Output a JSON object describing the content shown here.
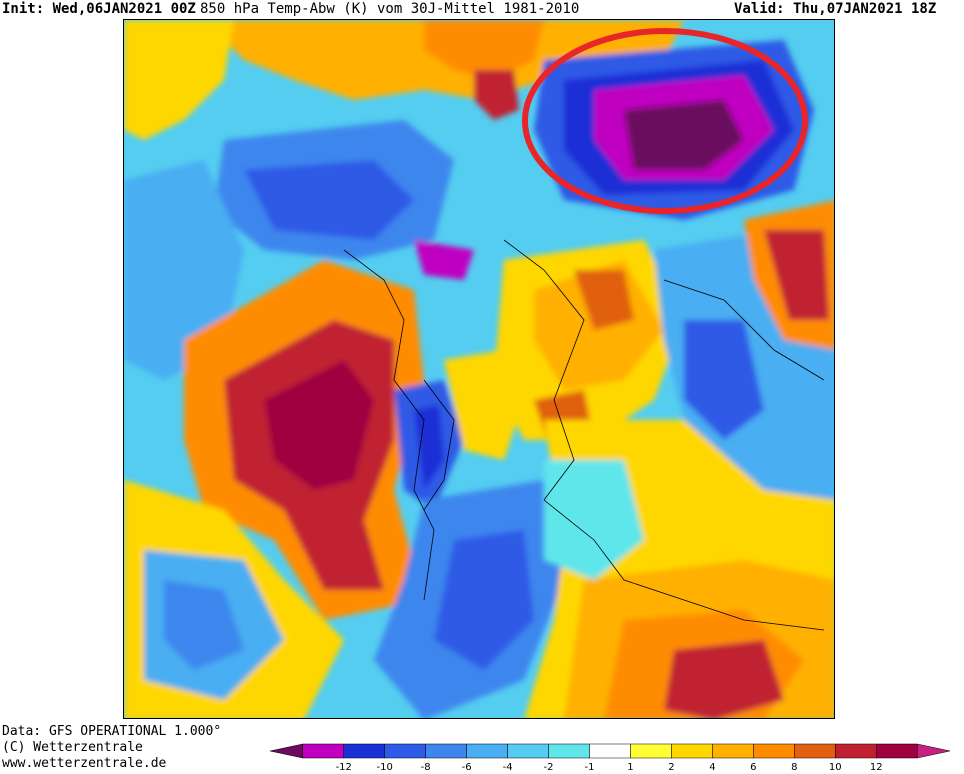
{
  "header": {
    "init": "Init: Wed,06JAN2021 00Z",
    "title": "850 hPa Temp-Abw (K) vom 30J-Mittel 1981-2010",
    "valid": "Valid: Thu,07JAN2021 18Z"
  },
  "footer": {
    "line1": "Data: GFS OPERATIONAL 1.000°",
    "line2": "(C) Wetterzentrale",
    "line3": "www.wetterzentrale.de"
  },
  "legend": {
    "colors": [
      "#6b0a5e",
      "#c000c0",
      "#1a2fd6",
      "#2d5ae6",
      "#3d86ee",
      "#49aef2",
      "#54cdf0",
      "#5fe6ea",
      "#ffffff",
      "#ffff33",
      "#ffd700",
      "#ffb000",
      "#ff8c00",
      "#e06010",
      "#c02030",
      "#a00040",
      "#c82080"
    ],
    "ticks": [
      "-12",
      "-10",
      "-8",
      "-6",
      "-4",
      "-2",
      "-1",
      "1",
      "2",
      "4",
      "6",
      "8",
      "10",
      "12"
    ]
  },
  "map": {
    "annotation_color": "#e8262a"
  }
}
